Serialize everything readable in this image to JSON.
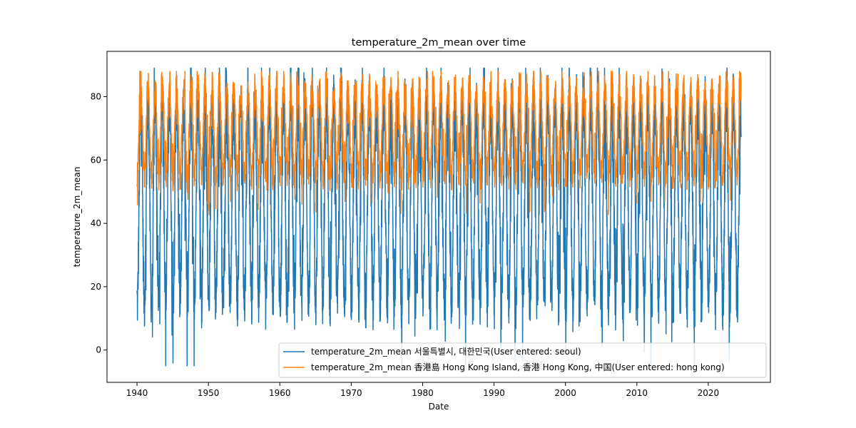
{
  "chart_data": {
    "type": "line",
    "title": "temperature_2m_mean over time",
    "xlabel": "Date",
    "ylabel": "temperature_2m_mean",
    "xlim": [
      1935.8,
      2028.7
    ],
    "ylim": [
      -10.2,
      94.3
    ],
    "x_ticks": [
      1940,
      1950,
      1960,
      1970,
      1980,
      1990,
      2000,
      2010,
      2020
    ],
    "x_tick_labels": [
      "1940",
      "1950",
      "1960",
      "1970",
      "1980",
      "1990",
      "2000",
      "2010",
      "2020"
    ],
    "y_ticks": [
      0,
      20,
      40,
      60,
      80
    ],
    "y_tick_labels": [
      "0",
      "20",
      "40",
      "60",
      "80"
    ],
    "legend_position": "lower-center",
    "x_range": [
      1940.0,
      2024.6
    ],
    "series": [
      {
        "name": "temperature_2m_mean 서울특별시, 대한민국(User entered: seoul)",
        "color": "#1f77b4",
        "seasonal_profile": {
          "annual_low": 15,
          "annual_high": 78,
          "observed_min": -5,
          "observed_max": 89
        }
      },
      {
        "name": "temperature_2m_mean 香港島 Hong Kong Island, 香港 Hong Kong, 中国(User entered: hong kong)",
        "color": "#ff7f0e",
        "seasonal_profile": {
          "annual_low": 55,
          "annual_high": 83,
          "observed_min": 41,
          "observed_max": 88
        }
      }
    ]
  }
}
